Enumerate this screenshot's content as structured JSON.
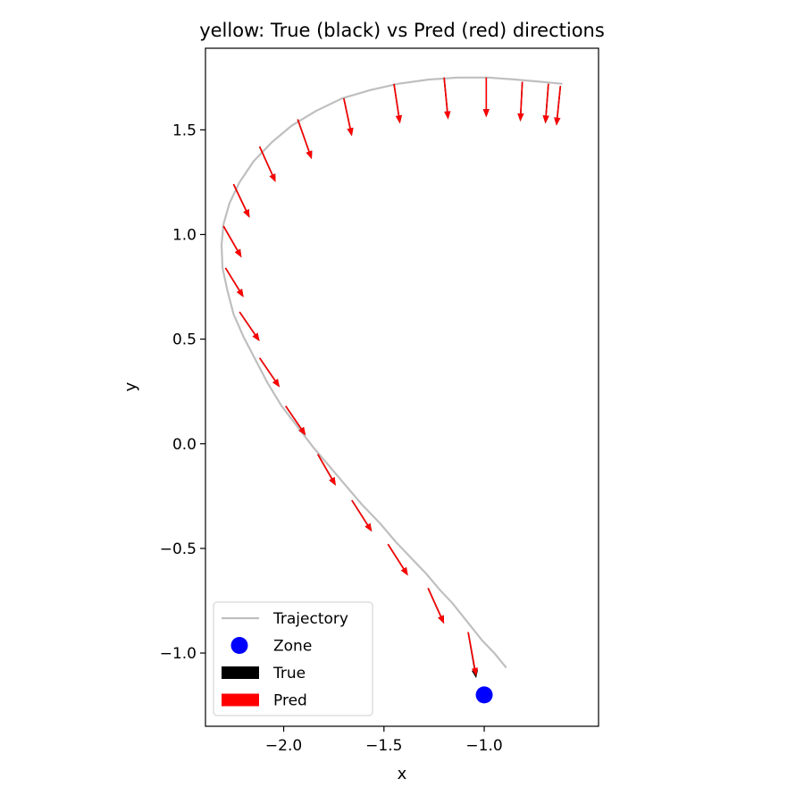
{
  "chart_data": {
    "type": "quiver",
    "title": "yellow: True (black) vs Pred (red) directions",
    "xlabel": "x",
    "ylabel": "y",
    "xlim": [
      -2.39,
      -0.43
    ],
    "ylim": [
      -1.35,
      1.89
    ],
    "xticks": [
      -2.0,
      -1.5,
      -1.0
    ],
    "xtick_labels": [
      "−2.0",
      "−1.5",
      "−1.0"
    ],
    "yticks": [
      -1.0,
      -0.5,
      0.0,
      0.5,
      1.0,
      1.5
    ],
    "ytick_labels": [
      "−1.0",
      "−0.5",
      "0.0",
      "0.5",
      "1.0",
      "1.5"
    ],
    "grid": false,
    "legend": {
      "placement": "lower left",
      "entries": [
        {
          "label": "Trajectory",
          "kind": "line",
          "color": "#bfbfbf"
        },
        {
          "label": "Zone",
          "kind": "marker",
          "color": "#0000ff"
        },
        {
          "label": "True",
          "kind": "patch",
          "color": "#000000"
        },
        {
          "label": "Pred",
          "kind": "patch",
          "color": "#ff0000"
        }
      ]
    },
    "trajectory": {
      "name": "Trajectory",
      "color": "#bfbfbf",
      "x": [
        -0.89,
        -0.95,
        -1.01,
        -1.06,
        -1.11,
        -1.16,
        -1.22,
        -1.29,
        -1.36,
        -1.44,
        -1.52,
        -1.61,
        -1.69,
        -1.77,
        -1.85,
        -1.93,
        -2.01,
        -2.08,
        -2.14,
        -2.2,
        -2.25,
        -2.28,
        -2.305,
        -2.31,
        -2.3,
        -2.27,
        -2.22,
        -2.15,
        -2.06,
        -1.96,
        -1.84,
        -1.71,
        -1.57,
        -1.43,
        -1.28,
        -1.13,
        -0.98,
        -0.84,
        -0.72,
        -0.61
      ],
      "y": [
        -1.07,
        -1.0,
        -0.94,
        -0.88,
        -0.82,
        -0.76,
        -0.7,
        -0.62,
        -0.55,
        -0.47,
        -0.38,
        -0.29,
        -0.2,
        -0.11,
        -0.02,
        0.08,
        0.18,
        0.29,
        0.4,
        0.51,
        0.62,
        0.73,
        0.84,
        0.95,
        1.05,
        1.15,
        1.25,
        1.35,
        1.44,
        1.52,
        1.59,
        1.65,
        1.69,
        1.72,
        1.74,
        1.75,
        1.75,
        1.74,
        1.73,
        1.72
      ]
    },
    "zone": {
      "name": "Zone",
      "x": -1.0,
      "y": -1.2,
      "color": "#0000ff"
    },
    "arrows": {
      "origins": [
        [
          -1.08,
          -0.9
        ],
        [
          -1.28,
          -0.69
        ],
        [
          -1.48,
          -0.48
        ],
        [
          -1.66,
          -0.27
        ],
        [
          -1.83,
          -0.05
        ],
        [
          -1.99,
          0.18
        ],
        [
          -2.12,
          0.41
        ],
        [
          -2.22,
          0.63
        ],
        [
          -2.29,
          0.84
        ],
        [
          -2.3,
          1.04
        ],
        [
          -2.25,
          1.24
        ],
        [
          -2.12,
          1.42
        ],
        [
          -1.93,
          1.55
        ],
        [
          -1.7,
          1.65
        ],
        [
          -1.45,
          1.72
        ],
        [
          -1.2,
          1.75
        ],
        [
          -0.99,
          1.75
        ],
        [
          -0.81,
          1.73
        ],
        [
          -0.68,
          1.72
        ],
        [
          -0.62,
          1.71
        ]
      ],
      "true": {
        "name": "True",
        "color": "#000000",
        "vectors": [
          [
            0.04,
            -0.22
          ],
          [
            0.08,
            -0.17
          ],
          [
            0.1,
            -0.15
          ],
          [
            0.1,
            -0.15
          ],
          [
            0.09,
            -0.15
          ],
          [
            0.1,
            -0.14
          ],
          [
            0.1,
            -0.14
          ],
          [
            0.1,
            -0.14
          ],
          [
            0.09,
            -0.14
          ],
          [
            0.09,
            -0.15
          ],
          [
            0.08,
            -0.16
          ],
          [
            0.08,
            -0.17
          ],
          [
            0.07,
            -0.19
          ],
          [
            0.04,
            -0.18
          ],
          [
            0.03,
            -0.19
          ],
          [
            0.02,
            -0.2
          ],
          [
            0.0,
            -0.19
          ],
          [
            -0.01,
            -0.19
          ],
          [
            -0.015,
            -0.19
          ],
          [
            -0.02,
            -0.19
          ]
        ]
      },
      "pred": {
        "name": "Pred",
        "color": "#ff0000",
        "vectors": [
          [
            0.04,
            -0.21
          ],
          [
            0.08,
            -0.17
          ],
          [
            0.1,
            -0.15
          ],
          [
            0.1,
            -0.15
          ],
          [
            0.09,
            -0.15
          ],
          [
            0.1,
            -0.14
          ],
          [
            0.1,
            -0.14
          ],
          [
            0.1,
            -0.14
          ],
          [
            0.09,
            -0.14
          ],
          [
            0.09,
            -0.15
          ],
          [
            0.08,
            -0.16
          ],
          [
            0.08,
            -0.17
          ],
          [
            0.07,
            -0.19
          ],
          [
            0.04,
            -0.18
          ],
          [
            0.03,
            -0.19
          ],
          [
            0.02,
            -0.2
          ],
          [
            0.0,
            -0.19
          ],
          [
            -0.01,
            -0.19
          ],
          [
            -0.015,
            -0.19
          ],
          [
            -0.02,
            -0.19
          ]
        ]
      }
    }
  }
}
